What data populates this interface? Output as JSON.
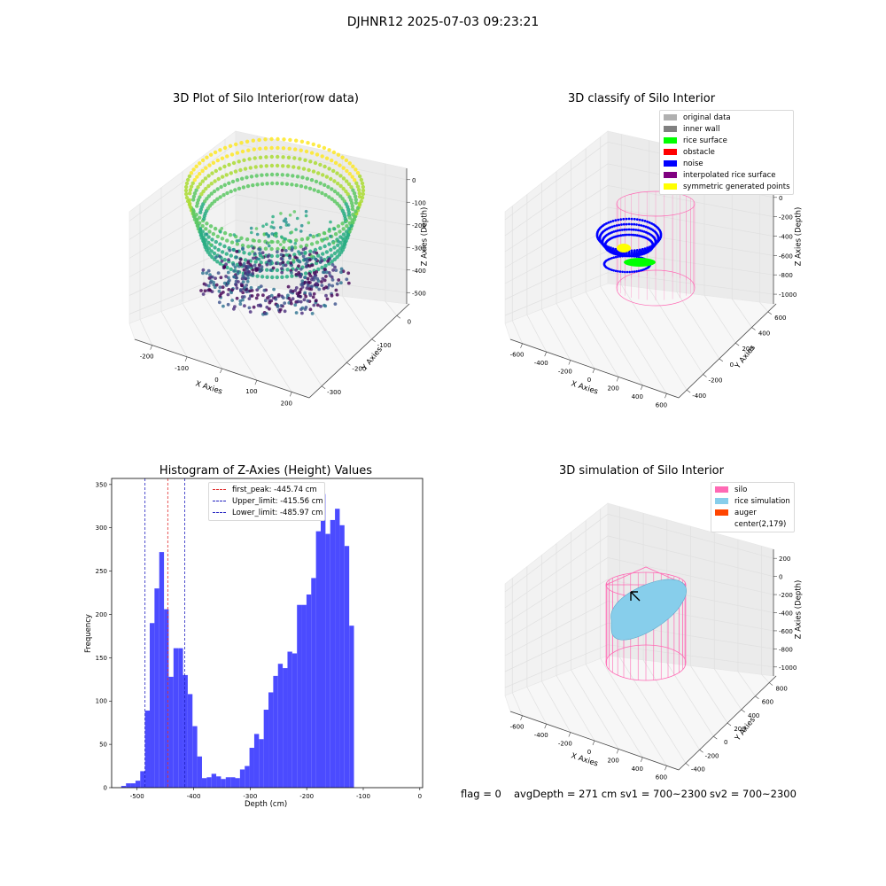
{
  "suptitle": "DJHNR12 2025-07-03 09:23:21",
  "status": {
    "flag": "flag = 0",
    "avg": "avgDepth = 271 cm",
    "sv1": "sv1 = 700~2300",
    "sv2": "sv2 = 700~2300"
  },
  "colors": {
    "hist_bar": "#4b4bff",
    "first_peak_line": "#e03030",
    "limit_line": "#2020c0",
    "silo": "#ff69b4",
    "rice_simulation": "#87ceeb",
    "auger": "#ff4500",
    "noise": "#0000ff",
    "rice_surface": "#00ff00",
    "symmetric": "#ffff00"
  },
  "chart_data": [
    {
      "type": "scatter",
      "panel": "3d-raw",
      "title": "3D Plot of Silo Interior(row data)",
      "xlabel": "X Axies",
      "ylabel": "Y Axies",
      "zlabel": "Z Axies (Depth)",
      "xticks": [
        "-200",
        "-100",
        "0",
        "100",
        "200"
      ],
      "yticks": [
        "-300",
        "-200",
        "-100",
        "0"
      ],
      "zticks": [
        "0",
        "-100",
        "-200",
        "-300",
        "-400",
        "-500"
      ],
      "xlim": [
        -250,
        220
      ],
      "ylim": [
        -330,
        50
      ],
      "zlim": [
        -560,
        10
      ],
      "colormap": "viridis"
    },
    {
      "type": "scatter",
      "panel": "3d-classify",
      "title": "3D classify of Silo Interior",
      "xlabel": "X Axies",
      "ylabel": "Y Axies",
      "zlabel": "Z Axies (Depth)",
      "xticks": [
        "-600",
        "-400",
        "-200",
        "0",
        "200",
        "400",
        "600"
      ],
      "yticks": [
        "-400",
        "-200",
        "0",
        "200",
        "400",
        "600"
      ],
      "zticks": [
        "200",
        "0",
        "-200",
        "-400",
        "-600",
        "-800",
        "-1000"
      ],
      "legend": [
        {
          "label": "original data",
          "color": "#b0b0b0"
        },
        {
          "label": "inner wall",
          "color": "#808080"
        },
        {
          "label": "rice surface",
          "color": "#00ff00"
        },
        {
          "label": "obstacle",
          "color": "#ff0000"
        },
        {
          "label": "noise",
          "color": "#0000ff"
        },
        {
          "label": "interpolated rice surface",
          "color": "#800080"
        },
        {
          "label": "symmetric generated points",
          "color": "#ffff00"
        }
      ]
    },
    {
      "type": "bar",
      "panel": "histogram",
      "title": "Histogram of Z-Axies (Height) Values",
      "xlabel": "Depth (cm)",
      "ylabel": "Frequency",
      "xlim": [
        -545,
        5
      ],
      "ylim": [
        0,
        357
      ],
      "xticks": [
        -500,
        -400,
        -300,
        -200,
        -100,
        0
      ],
      "yticks": [
        0,
        50,
        100,
        150,
        200,
        250,
        300,
        350
      ],
      "bin_start": -528,
      "bin_width": 8.4,
      "values": [
        2,
        5,
        5,
        8,
        19,
        89,
        190,
        230,
        272,
        206,
        128,
        161,
        161,
        130,
        108,
        71,
        36,
        11,
        12,
        16,
        13,
        10,
        12,
        12,
        11,
        21,
        25,
        46,
        62,
        56,
        90,
        110,
        129,
        143,
        138,
        157,
        155,
        211,
        211,
        223,
        242,
        296,
        339,
        293,
        309,
        322,
        303,
        279,
        187
      ],
      "vlines": [
        {
          "label": "first_peak: -445.74 cm",
          "x": -445.74,
          "color": "#e03030"
        },
        {
          "label": "Upper_limit: -415.56 cm",
          "x": -415.56,
          "color": "#2020c0"
        },
        {
          "label": "Lower_limit: -485.97 cm",
          "x": -485.97,
          "color": "#2020c0"
        }
      ]
    },
    {
      "type": "scatter",
      "panel": "3d-simulation",
      "title": "3D simulation of Silo Interior",
      "xlabel": "X Axies",
      "ylabel": "Y Axies",
      "zlabel": "Z Axies (Depth)",
      "xticks": [
        "-600",
        "-400",
        "-200",
        "0",
        "200",
        "400",
        "600"
      ],
      "yticks": [
        "-400",
        "-200",
        "0",
        "200",
        "400",
        "600",
        "800"
      ],
      "zticks": [
        "200",
        "0",
        "-200",
        "-400",
        "-600",
        "-800",
        "-1000"
      ],
      "legend": [
        {
          "label": "silo",
          "color": "#ff69b4"
        },
        {
          "label": "rice simulation",
          "color": "#87ceeb"
        },
        {
          "label": "auger",
          "color": "#ff4500"
        },
        {
          "label": "center(2,179)",
          "color": ""
        }
      ]
    }
  ]
}
